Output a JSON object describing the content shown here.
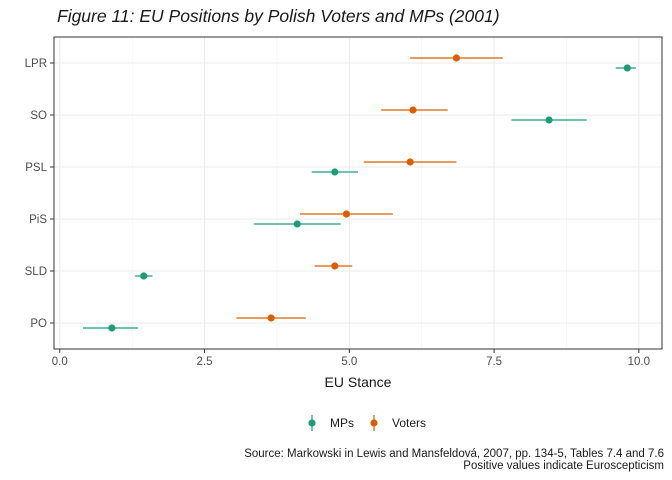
{
  "chart_data": {
    "type": "scatter",
    "title": "Figure 11: EU Positions by Polish Voters and MPs (2001)",
    "xlabel": "EU Stance",
    "ylabel": "",
    "xlim": [
      -0.1,
      10.4
    ],
    "xticks": [
      0.0,
      2.5,
      5.0,
      7.5,
      10.0
    ],
    "xtick_labels": [
      "0.0",
      "2.5",
      "5.0",
      "7.5",
      "10.0"
    ],
    "categories": [
      "PO",
      "SLD",
      "PiS",
      "PSL",
      "SO",
      "LPR"
    ],
    "grid": true,
    "legend_position": "bottom",
    "series": [
      {
        "name": "MPs",
        "color": "#1b9e77",
        "points": [
          {
            "category": "PO",
            "value": 0.9,
            "low": 0.4,
            "high": 1.35
          },
          {
            "category": "SLD",
            "value": 1.45,
            "low": 1.3,
            "high": 1.6
          },
          {
            "category": "PiS",
            "value": 4.1,
            "low": 3.35,
            "high": 4.85
          },
          {
            "category": "PSL",
            "value": 4.75,
            "low": 4.35,
            "high": 5.15
          },
          {
            "category": "SO",
            "value": 8.45,
            "low": 7.8,
            "high": 9.1
          },
          {
            "category": "LPR",
            "value": 9.8,
            "low": 9.6,
            "high": 9.95
          }
        ]
      },
      {
        "name": "Voters",
        "color": "#d95f02",
        "points": [
          {
            "category": "PO",
            "value": 3.65,
            "low": 3.05,
            "high": 4.25
          },
          {
            "category": "SLD",
            "value": 4.75,
            "low": 4.4,
            "high": 5.05
          },
          {
            "category": "PiS",
            "value": 4.95,
            "low": 4.15,
            "high": 5.75
          },
          {
            "category": "PSL",
            "value": 6.05,
            "low": 5.25,
            "high": 6.85
          },
          {
            "category": "SO",
            "value": 6.1,
            "low": 5.55,
            "high": 6.7
          },
          {
            "category": "LPR",
            "value": 6.85,
            "low": 6.05,
            "high": 7.65
          }
        ]
      }
    ]
  },
  "captions": {
    "source": "Source: Markowski in Lewis and Mansfeldová, 2007, pp. 134-5, Tables 7.4 and 7.6",
    "note": "Positive values indicate Euroscepticism"
  }
}
